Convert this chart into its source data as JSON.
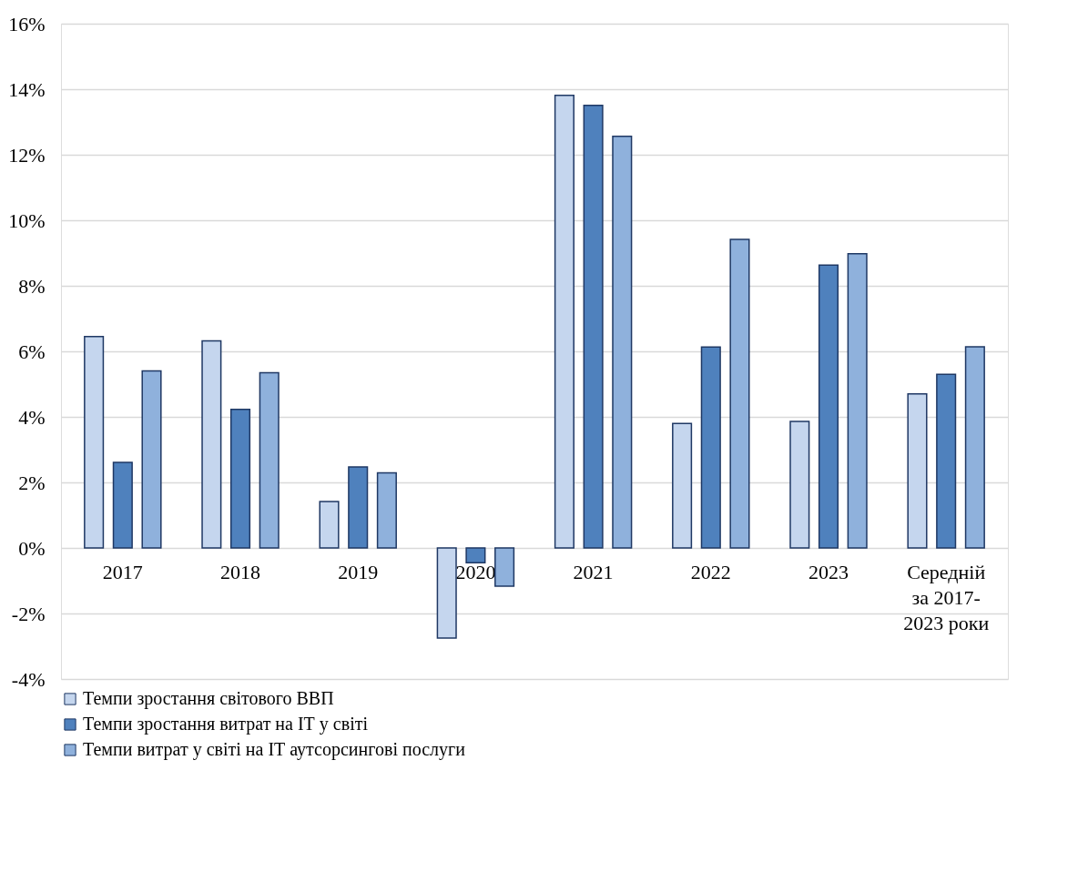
{
  "chart_data": {
    "type": "bar",
    "categories": [
      "2017",
      "2018",
      "2019",
      "2020",
      "2021",
      "2022",
      "2023",
      "Середній\nза  2017-\n2023 роки"
    ],
    "series": [
      {
        "name": "Темпи зростання світового ВВП",
        "color": "#c5d6ee",
        "values": [
          6.45,
          6.32,
          1.42,
          -2.75,
          13.81,
          3.8,
          3.86,
          4.7
        ]
      },
      {
        "name": "Темпи зростання  витрат на ІТ у світі",
        "color": "#4f81bd",
        "values": [
          2.61,
          4.23,
          2.47,
          -0.45,
          13.51,
          6.13,
          8.63,
          5.3
        ]
      },
      {
        "name": "Темпи витрат у світі  на ІТ аутсорсингові послуги",
        "color": "#8fb1dc",
        "values": [
          5.4,
          5.35,
          2.29,
          -1.17,
          12.56,
          9.42,
          8.98,
          6.14
        ]
      }
    ],
    "ylim": [
      -4,
      16
    ],
    "yticks": [
      {
        "value": -4,
        "label": "-4%"
      },
      {
        "value": -2,
        "label": "-2%"
      },
      {
        "value": 0,
        "label": "0%"
      },
      {
        "value": 2,
        "label": "2%"
      },
      {
        "value": 4,
        "label": "4%"
      },
      {
        "value": 6,
        "label": "6%"
      },
      {
        "value": 8,
        "label": "8%"
      },
      {
        "value": 10,
        "label": "10%"
      },
      {
        "value": 12,
        "label": "12%"
      },
      {
        "value": 14,
        "label": "14%"
      },
      {
        "value": 16,
        "label": "16%"
      }
    ],
    "grid": "y",
    "legend": "bottom"
  }
}
